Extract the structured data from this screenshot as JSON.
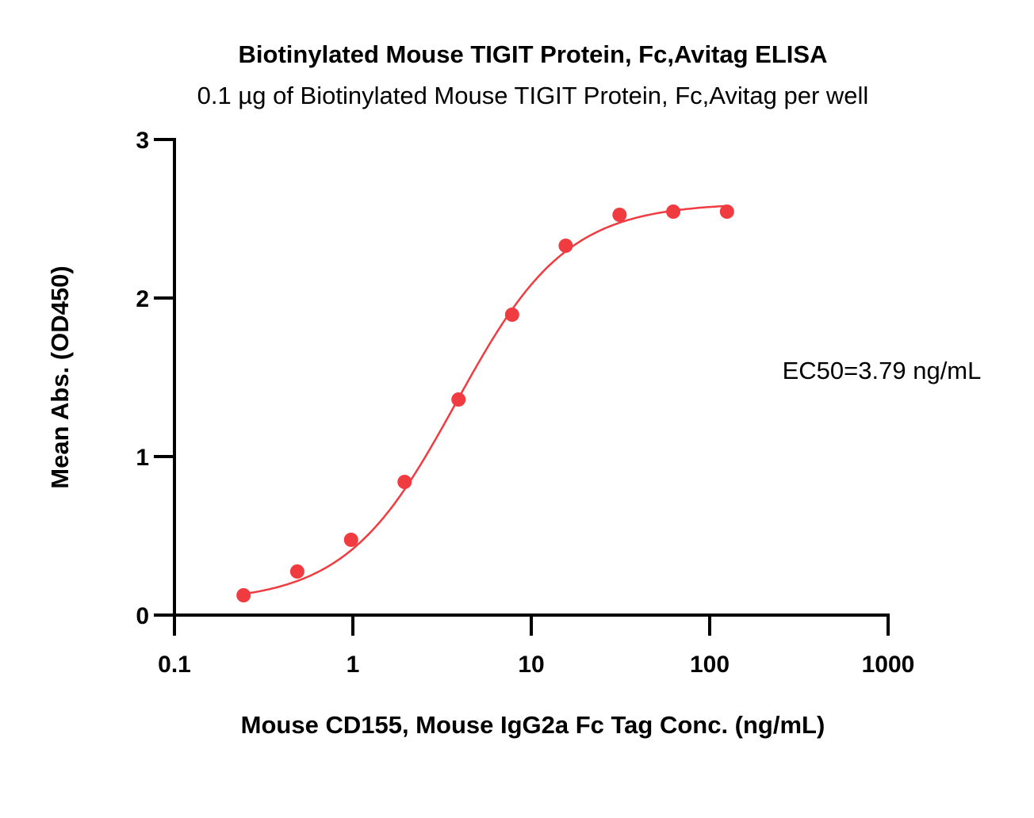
{
  "chart_data": {
    "type": "scatter",
    "title": "Biotinylated Mouse TIGIT Protein, Fc,Avitag ELISA",
    "subtitle": "0.1 µg of Biotinylated Mouse TIGIT Protein, Fc,Avitag per well",
    "xlabel": "Mouse CD155, Mouse IgG2a Fc Tag Conc. (ng/mL)",
    "ylabel": "Mean Abs. (OD450)",
    "xscale": "log",
    "xlim": [
      0.1,
      1000
    ],
    "ylim": [
      0,
      3
    ],
    "xticks": [
      "0.1",
      "1",
      "10",
      "100",
      "1000"
    ],
    "xtick_values": [
      0.1,
      1,
      10,
      100,
      1000
    ],
    "yticks": [
      "0",
      "1",
      "2",
      "3"
    ],
    "ytick_values": [
      0,
      1,
      2,
      3
    ],
    "grid": false,
    "color": "#f03c41",
    "series": [
      {
        "name": "Mean Abs.",
        "x": [
          0.244,
          0.488,
          0.977,
          1.95,
          3.91,
          7.81,
          15.6,
          31.25,
          62.5,
          125
        ],
        "y": [
          0.125,
          0.275,
          0.475,
          0.84,
          1.36,
          1.895,
          2.33,
          2.525,
          2.545,
          2.545
        ]
      }
    ],
    "fit": {
      "model": "4PL",
      "bottom": 0.08,
      "top": 2.6,
      "ec50": 3.79,
      "hill": 1.4,
      "xrange": [
        0.244,
        125
      ]
    },
    "annotation": "EC50=3.79 ng/mL"
  }
}
